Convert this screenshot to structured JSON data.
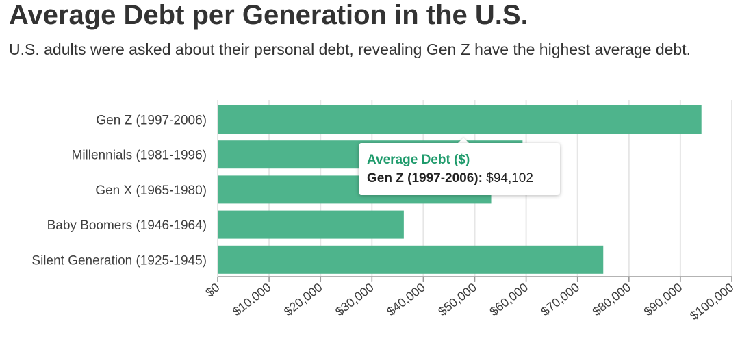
{
  "chart_data": {
    "type": "bar",
    "orientation": "horizontal",
    "title": "Average Debt per Generation in the U.S.",
    "subtitle": "U.S. adults were asked about their personal debt, revealing Gen Z have the highest average debt.",
    "categories": [
      "Gen Z (1997-2006)",
      "Millennials (1981-1996)",
      "Gen X (1965-1980)",
      "Baby Boomers (1946-1964)",
      "Silent Generation (1925-1945)"
    ],
    "series": [
      {
        "name": "Average Debt ($)",
        "values": [
          94102,
          59300,
          53200,
          36200,
          75000
        ]
      }
    ],
    "xlim": [
      0,
      100000
    ],
    "x_ticks": [
      0,
      10000,
      20000,
      30000,
      40000,
      50000,
      60000,
      70000,
      80000,
      90000,
      100000
    ],
    "x_tick_labels": [
      "$0",
      "$10,000",
      "$20,000",
      "$30,000",
      "$40,000",
      "$50,000",
      "$60,000",
      "$70,000",
      "$80,000",
      "$90,000",
      "$100,000"
    ],
    "grid": true,
    "bar_color": "#4eb48c",
    "accent_color": "#1f9b6c"
  },
  "tooltip": {
    "title": "Average Debt ($)",
    "category": "Gen Z (1997-2006):",
    "value": "$94,102"
  }
}
